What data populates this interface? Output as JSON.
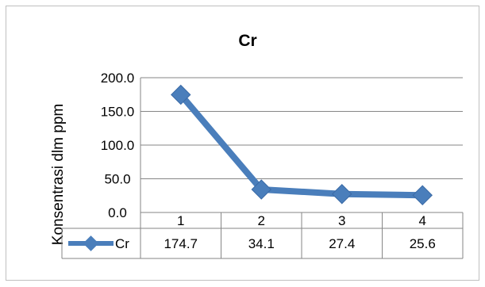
{
  "chart_data": {
    "type": "line",
    "title": "Cr",
    "ylabel": "Konsentrasi dlm ppm",
    "xlabel": "",
    "categories": [
      "1",
      "2",
      "3",
      "4"
    ],
    "y_ticks": [
      "0.0",
      "50.0",
      "100.0",
      "150.0",
      "200.0"
    ],
    "ylim": [
      0,
      200
    ],
    "grid": true,
    "legend": "data-table-left",
    "series": [
      {
        "name": "Cr",
        "values": [
          174.7,
          34.1,
          27.4,
          25.6
        ],
        "labels": [
          "174.7",
          "34.1",
          "27.4",
          "25.6"
        ],
        "color": "#4a7ebb"
      }
    ]
  }
}
